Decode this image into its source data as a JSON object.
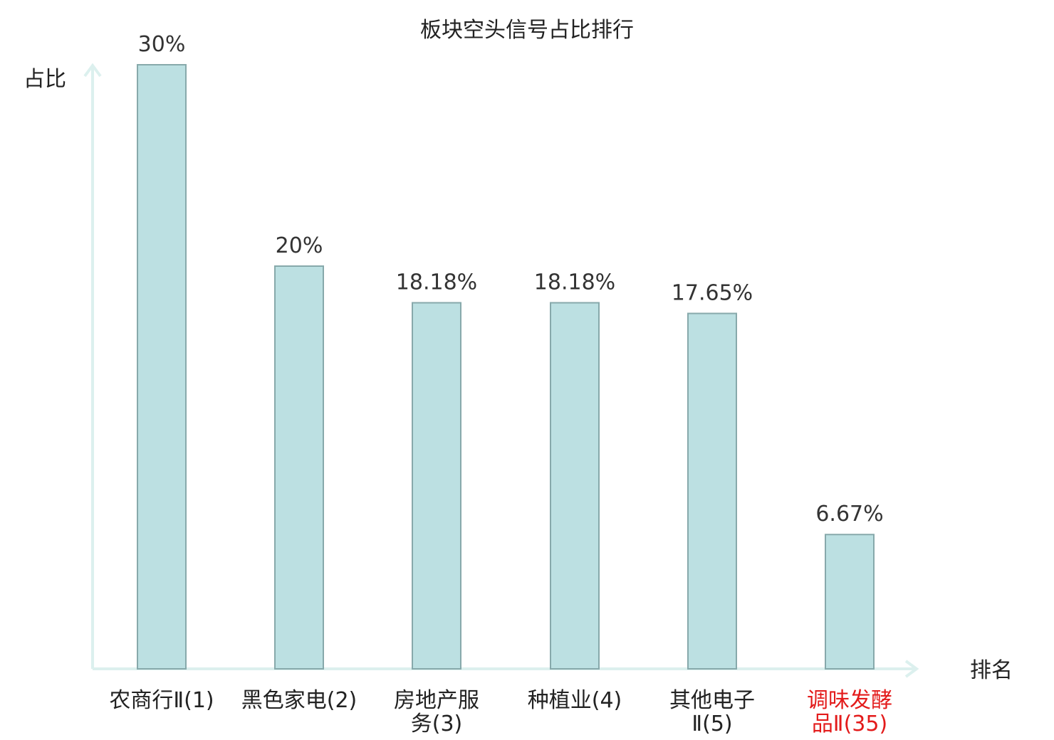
{
  "chart_data": {
    "type": "bar",
    "title": "板块空头信号占比排行",
    "ylabel": "占比",
    "xlabel": "排名",
    "ylim": [
      0,
      30
    ],
    "categories": [
      [
        "农商行Ⅱ(1)"
      ],
      [
        "黑色家电(2)"
      ],
      [
        "房地产服",
        "务(3)"
      ],
      [
        "种植业(4)"
      ],
      [
        "其他电子",
        "Ⅱ(5)"
      ],
      [
        "调味发酵",
        "品Ⅱ(35)"
      ]
    ],
    "values": [
      30,
      20,
      18.18,
      18.18,
      17.65,
      6.67
    ],
    "value_labels": [
      "30%",
      "20%",
      "18.18%",
      "18.18%",
      "17.65%",
      "6.67%"
    ],
    "highlight_index": 5,
    "colors": {
      "bar": "#bce0e2",
      "bar_stroke": "#87a9ab",
      "axis": "#dcf0ee",
      "highlight": "#e31b1b"
    },
    "grid": false
  }
}
